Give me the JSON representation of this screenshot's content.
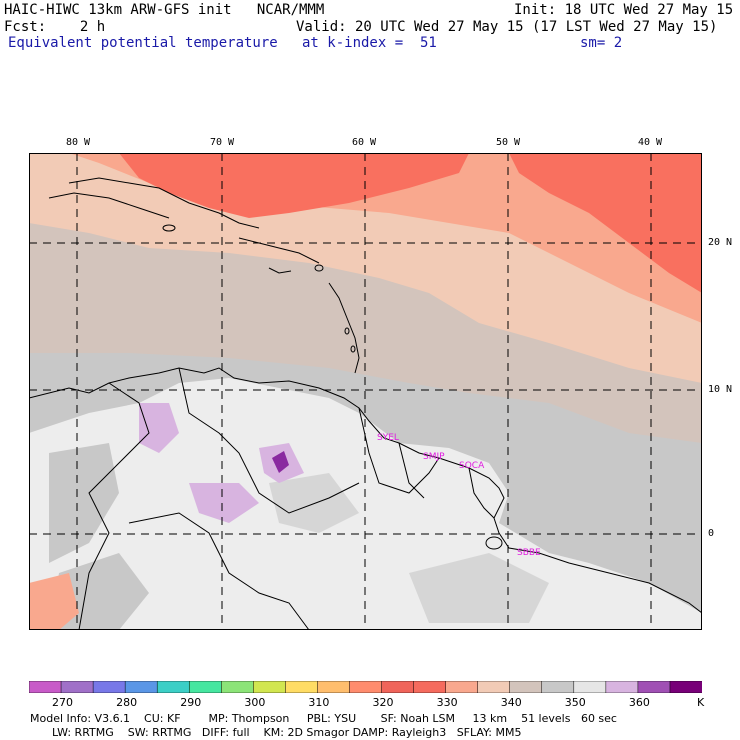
{
  "header": {
    "line1_left": "HAIC-HIWC 13km ARW-GFS init   NCAR/MMM",
    "line1_right": "Init: 18 UTC Wed 27 May 15",
    "line2_left": "Fcst:    2 h",
    "line2_right": "Valid: 20 UTC Wed 27 May 15 (17 LST Wed 27 May 15)",
    "line3_field": "Equivalent potential temperature",
    "line3_level": "at k-index =  51",
    "line3_sm": "sm= 2"
  },
  "map": {
    "lon_labels": [
      "80 W",
      "70 W",
      "60 W",
      "50 W",
      "40 W"
    ],
    "lat_labels": [
      "20 N",
      "10 N",
      "0"
    ],
    "stations": [
      "SYEL",
      "SMJP",
      "SOCA",
      "SBBE"
    ],
    "colors": {
      "hot": "#f9705f",
      "warm": "#f9a88e",
      "peach": "#f2cbb6",
      "tan": "#d3c4bc",
      "gray": "#c8c8c8",
      "light": "#ededed",
      "lilac": "#d8b4e0",
      "purple": "#8a2aa0",
      "station": "#e020e0"
    }
  },
  "colorbar": {
    "unit": "K",
    "ticks": [
      "270",
      "280",
      "290",
      "300",
      "310",
      "320",
      "330",
      "340",
      "350",
      "360"
    ],
    "colors": [
      "#c85ac8",
      "#a070c8",
      "#7878e8",
      "#5a96e6",
      "#3ccfc6",
      "#46e6a0",
      "#8ce478",
      "#d2e650",
      "#ffdc64",
      "#ffbe6e",
      "#ff8c6e",
      "#f0645a",
      "#f56b5e",
      "#f9a88e",
      "#f2cbb6",
      "#d3c4bc",
      "#c8c8c8",
      "#e6e6e6",
      "#d8b4e0",
      "#a050b4",
      "#780078"
    ]
  },
  "model_info": {
    "line1": "Model Info: V3.6.1    CU: KF        MP: Thompson     PBL: YSU       SF: Noah LSM     13 km    51 levels   60 sec",
    "line2": "LW: RRTMG    SW: RRTMG   DIFF: full    KM: 2D Smagor DAMP: Rayleigh3   SFLAY: MM5"
  }
}
